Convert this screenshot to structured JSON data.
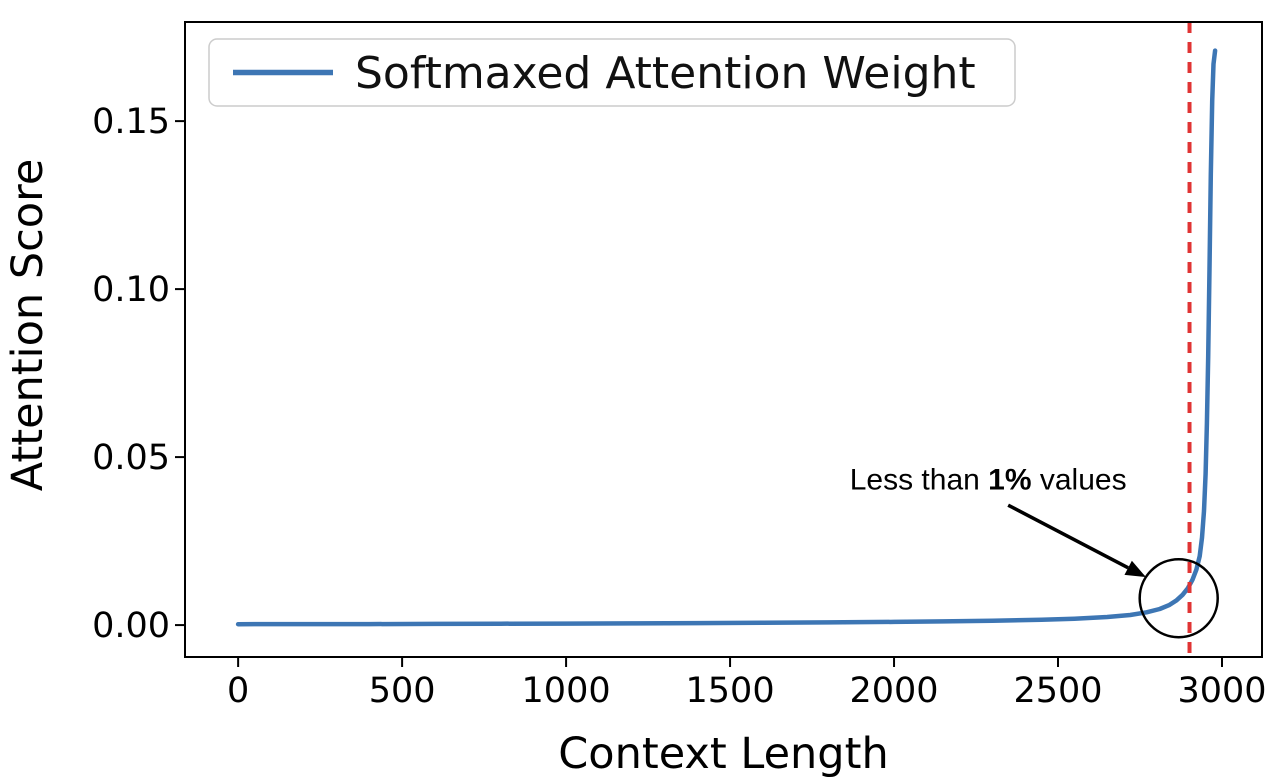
{
  "chart_data": {
    "type": "line",
    "title": "",
    "xlabel": "Context Length",
    "ylabel": "Attention Score",
    "xlim": [
      -162,
      3122
    ],
    "ylim": [
      -0.0095,
      0.1795
    ],
    "xticks": [
      0,
      500,
      1000,
      1500,
      2000,
      2500,
      3000
    ],
    "yticks": [
      0,
      0.05,
      0.1,
      0.15
    ],
    "grid": false,
    "legend": {
      "position": "upper-left",
      "entries": [
        {
          "label": "Softmaxed Attention Weight",
          "color": "#3d76b4"
        }
      ]
    },
    "series": [
      {
        "name": "Softmaxed Attention Weight",
        "color": "#3d76b4",
        "points": [
          [
            0,
            0.00025
          ],
          [
            200,
            0.00028
          ],
          [
            400,
            0.0003
          ],
          [
            600,
            0.00035
          ],
          [
            800,
            0.0004
          ],
          [
            1000,
            0.00045
          ],
          [
            1200,
            0.0005
          ],
          [
            1400,
            0.0006
          ],
          [
            1600,
            0.0007
          ],
          [
            1800,
            0.0008
          ],
          [
            2000,
            0.00095
          ],
          [
            2150,
            0.0011
          ],
          [
            2300,
            0.0013
          ],
          [
            2450,
            0.0016
          ],
          [
            2550,
            0.0019
          ],
          [
            2650,
            0.0024
          ],
          [
            2720,
            0.003
          ],
          [
            2770,
            0.0038
          ],
          [
            2810,
            0.0048
          ],
          [
            2840,
            0.006
          ],
          [
            2862,
            0.0074
          ],
          [
            2880,
            0.009
          ],
          [
            2896,
            0.011
          ],
          [
            2910,
            0.0135
          ],
          [
            2922,
            0.0165
          ],
          [
            2932,
            0.0205
          ],
          [
            2939,
            0.026
          ],
          [
            2945,
            0.034
          ],
          [
            2950,
            0.045
          ],
          [
            2954,
            0.06
          ],
          [
            2958,
            0.08
          ],
          [
            2962,
            0.106
          ],
          [
            2966,
            0.134
          ],
          [
            2970,
            0.156
          ],
          [
            2974,
            0.167
          ],
          [
            2979,
            0.171
          ]
        ]
      }
    ],
    "vline": {
      "x": 2901,
      "color": "#e03434",
      "style": "dashed"
    },
    "annotation": {
      "text_prefix": "Less than ",
      "text_bold": "1%",
      "text_suffix": " values",
      "text_pos": [
        2287,
        0.0434
      ],
      "arrow_from": [
        2348,
        0.0357
      ],
      "arrow_to": [
        2768,
        0.0143
      ],
      "circle_center": [
        2868,
        0.008
      ],
      "circle_radius_px": 39,
      "color": "#000000"
    }
  }
}
